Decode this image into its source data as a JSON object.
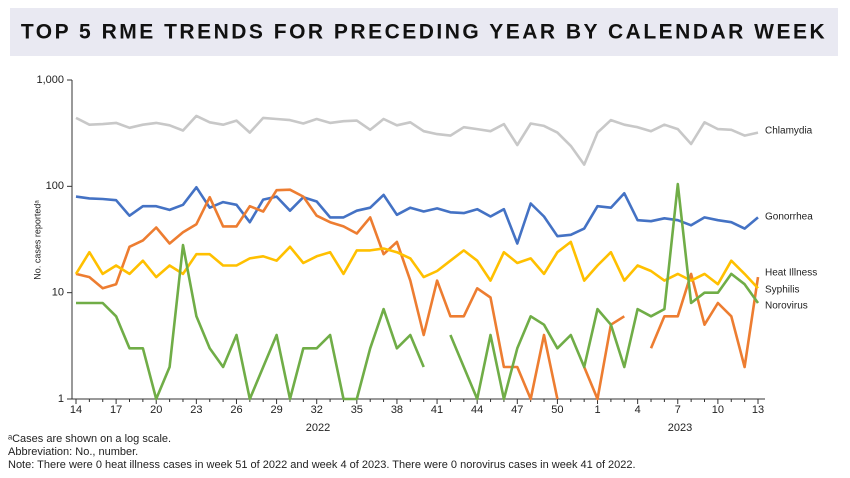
{
  "chart_data": {
    "type": "line",
    "title": "TOP 5 RME TRENDS FOR PRECEDING YEAR BY CALENDAR WEEK",
    "y_label": "No. cases reportedᵃ",
    "log_scale": true,
    "ylim": [
      1,
      1000
    ],
    "yticks": [
      1,
      10,
      100,
      {
        "value": 1000,
        "label": "1,000"
      }
    ],
    "categories": [
      "14",
      null,
      null,
      "17",
      null,
      null,
      "20",
      null,
      null,
      "23",
      null,
      null,
      "26",
      null,
      null,
      "29",
      null,
      null,
      "32",
      null,
      null,
      "35",
      null,
      null,
      "38",
      null,
      null,
      "41",
      null,
      null,
      "44",
      null,
      null,
      "47",
      null,
      null,
      "50",
      null,
      null,
      "1",
      null,
      null,
      "4",
      null,
      null,
      "7",
      null,
      null,
      "10",
      null,
      null,
      "13"
    ],
    "year_labels": [
      "2022",
      "2023"
    ],
    "series": [
      {
        "name": "Chlamydia",
        "color": "#c8c8c8",
        "values": [
          440,
          380,
          385,
          395,
          355,
          380,
          395,
          375,
          335,
          460,
          400,
          380,
          415,
          320,
          440,
          430,
          420,
          390,
          430,
          395,
          410,
          415,
          340,
          430,
          375,
          400,
          330,
          310,
          300,
          360,
          345,
          330,
          385,
          245,
          390,
          370,
          320,
          240,
          160,
          320,
          420,
          380,
          360,
          330,
          380,
          345,
          250,
          400,
          345,
          340,
          300,
          320
        ]
      },
      {
        "name": "Gonorrhea",
        "color": "#4472c4",
        "values": [
          80,
          77,
          76,
          74,
          53,
          65,
          65,
          60,
          67,
          98,
          63,
          71,
          67,
          46,
          75,
          80,
          59,
          79,
          72,
          51,
          51,
          59,
          63,
          83,
          54,
          63,
          58,
          62,
          57,
          56,
          61,
          52,
          61,
          29,
          69,
          52,
          34,
          35,
          40,
          65,
          63,
          86,
          48,
          47,
          50,
          48,
          43,
          51,
          48,
          46,
          40,
          51
        ]
      },
      {
        "name": "Heat Illness",
        "color": "#ed7d31",
        "values": [
          15,
          14,
          11,
          12,
          27,
          31,
          41,
          29,
          37,
          44,
          79,
          42,
          42,
          65,
          58,
          92,
          93,
          80,
          53,
          46,
          42,
          36,
          51,
          23,
          30,
          13,
          4,
          13,
          6,
          6,
          11,
          9,
          2,
          2,
          1,
          4,
          1,
          null,
          2,
          1,
          5,
          6,
          null,
          3,
          6,
          6,
          15,
          5,
          8,
          6,
          2,
          14
        ]
      },
      {
        "name": "Syphilis",
        "color": "#ffc000",
        "values": [
          15,
          24,
          15,
          18,
          15,
          20,
          14,
          18,
          15,
          23,
          23,
          18,
          18,
          21,
          22,
          20,
          27,
          19,
          22,
          24,
          15,
          25,
          25,
          26,
          24,
          21,
          14,
          16,
          20,
          25,
          20,
          13,
          24,
          19,
          21,
          15,
          24,
          30,
          13,
          18,
          24,
          13,
          18,
          16,
          13,
          15,
          13,
          15,
          12,
          20,
          15,
          11
        ]
      },
      {
        "name": "Norovirus",
        "color": "#70ad47",
        "values": [
          8,
          8,
          8,
          6,
          3,
          3,
          1,
          2,
          28,
          6,
          3,
          2,
          4,
          1,
          2,
          4,
          1,
          3,
          3,
          4,
          1,
          1,
          3,
          7,
          3,
          4,
          2,
          null,
          4,
          2,
          1,
          4,
          1,
          3,
          6,
          5,
          3,
          4,
          2,
          7,
          5,
          2,
          7,
          6,
          7,
          105,
          8,
          10,
          10,
          15,
          12,
          8
        ]
      }
    ],
    "footnotes": [
      "ᵃCases are shown on a log scale.",
      "Abbreviation: No., number.",
      "Note: There were 0 heat illness cases in week 51 of 2022 and week 4 of 2023. There were 0 norovirus cases in week 41 of 2022."
    ]
  }
}
